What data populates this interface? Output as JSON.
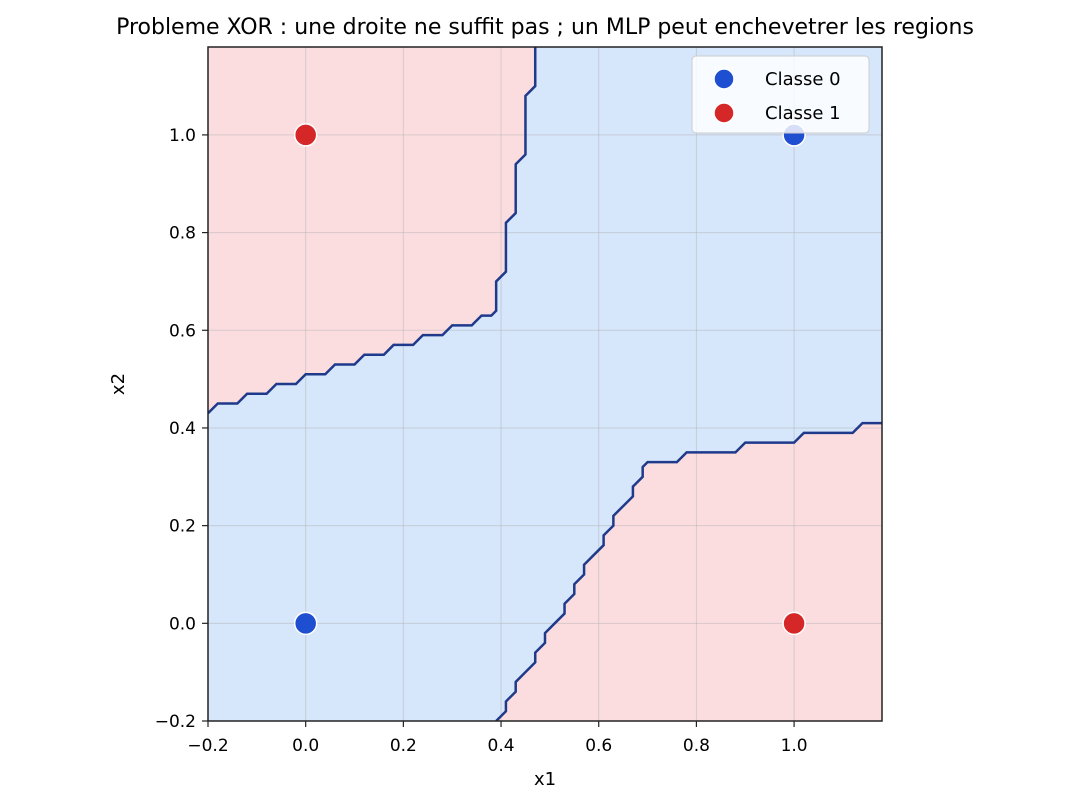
{
  "chart_data": {
    "type": "scatter",
    "title": "Probleme XOR : une droite ne suffit pas ; un MLP peut enchevetrer les regions",
    "xlabel": "x1",
    "ylabel": "x2",
    "xlim": [
      -0.2,
      1.18
    ],
    "ylim": [
      -0.2,
      1.18
    ],
    "xticks": [
      -0.2,
      0.0,
      0.2,
      0.4,
      0.6,
      0.8,
      1.0
    ],
    "yticks": [
      -0.2,
      0.0,
      0.2,
      0.4,
      0.6,
      0.8,
      1.0
    ],
    "xtick_labels": [
      "−0.2",
      "0.0",
      "0.2",
      "0.4",
      "0.6",
      "0.8",
      "1.0"
    ],
    "ytick_labels": [
      "−0.2",
      "0.0",
      "0.2",
      "0.4",
      "0.6",
      "0.8",
      "1.0"
    ],
    "grid": true,
    "legend_position": "top-right",
    "series": [
      {
        "name": "Classe 0",
        "color": "#1f4fd1",
        "points": [
          [
            0,
            0
          ],
          [
            1,
            1
          ]
        ]
      },
      {
        "name": "Classe 1",
        "color": "#d62728",
        "points": [
          [
            0,
            1
          ],
          [
            1,
            0
          ]
        ]
      }
    ],
    "regions": {
      "class0_fill": "#d6e6fb",
      "class1_fill": "#fbdde0",
      "boundary_color": "#1f3a8a"
    },
    "decision_boundary": [
      {
        "label": "upper-left",
        "points": [
          [
            -0.2,
            0.43
          ],
          [
            -0.18,
            0.45
          ],
          [
            -0.14,
            0.45
          ],
          [
            -0.12,
            0.47
          ],
          [
            -0.08,
            0.47
          ],
          [
            -0.06,
            0.49
          ],
          [
            -0.02,
            0.49
          ],
          [
            0.0,
            0.51
          ],
          [
            0.04,
            0.51
          ],
          [
            0.06,
            0.53
          ],
          [
            0.1,
            0.53
          ],
          [
            0.12,
            0.55
          ],
          [
            0.16,
            0.55
          ],
          [
            0.18,
            0.57
          ],
          [
            0.22,
            0.57
          ],
          [
            0.24,
            0.59
          ],
          [
            0.28,
            0.59
          ],
          [
            0.3,
            0.61
          ],
          [
            0.34,
            0.61
          ],
          [
            0.36,
            0.63
          ],
          [
            0.38,
            0.63
          ],
          [
            0.39,
            0.64
          ],
          [
            0.39,
            0.7
          ],
          [
            0.41,
            0.72
          ],
          [
            0.41,
            0.82
          ],
          [
            0.43,
            0.84
          ],
          [
            0.43,
            0.94
          ],
          [
            0.45,
            0.96
          ],
          [
            0.45,
            1.08
          ],
          [
            0.47,
            1.1
          ],
          [
            0.47,
            1.18
          ]
        ]
      },
      {
        "label": "lower-right",
        "points": [
          [
            0.39,
            -0.2
          ],
          [
            0.41,
            -0.18
          ],
          [
            0.41,
            -0.16
          ],
          [
            0.43,
            -0.14
          ],
          [
            0.43,
            -0.12
          ],
          [
            0.45,
            -0.1
          ],
          [
            0.47,
            -0.08
          ],
          [
            0.47,
            -0.06
          ],
          [
            0.49,
            -0.04
          ],
          [
            0.49,
            -0.02
          ],
          [
            0.51,
            0.0
          ],
          [
            0.53,
            0.02
          ],
          [
            0.53,
            0.04
          ],
          [
            0.55,
            0.06
          ],
          [
            0.55,
            0.08
          ],
          [
            0.57,
            0.1
          ],
          [
            0.57,
            0.12
          ],
          [
            0.59,
            0.14
          ],
          [
            0.61,
            0.16
          ],
          [
            0.61,
            0.18
          ],
          [
            0.63,
            0.2
          ],
          [
            0.63,
            0.22
          ],
          [
            0.65,
            0.24
          ],
          [
            0.67,
            0.26
          ],
          [
            0.67,
            0.28
          ],
          [
            0.69,
            0.3
          ],
          [
            0.69,
            0.32
          ],
          [
            0.7,
            0.33
          ],
          [
            0.76,
            0.33
          ],
          [
            0.78,
            0.35
          ],
          [
            0.88,
            0.35
          ],
          [
            0.9,
            0.37
          ],
          [
            1.0,
            0.37
          ],
          [
            1.02,
            0.39
          ],
          [
            1.12,
            0.39
          ],
          [
            1.14,
            0.41
          ],
          [
            1.18,
            0.41
          ]
        ]
      }
    ]
  }
}
